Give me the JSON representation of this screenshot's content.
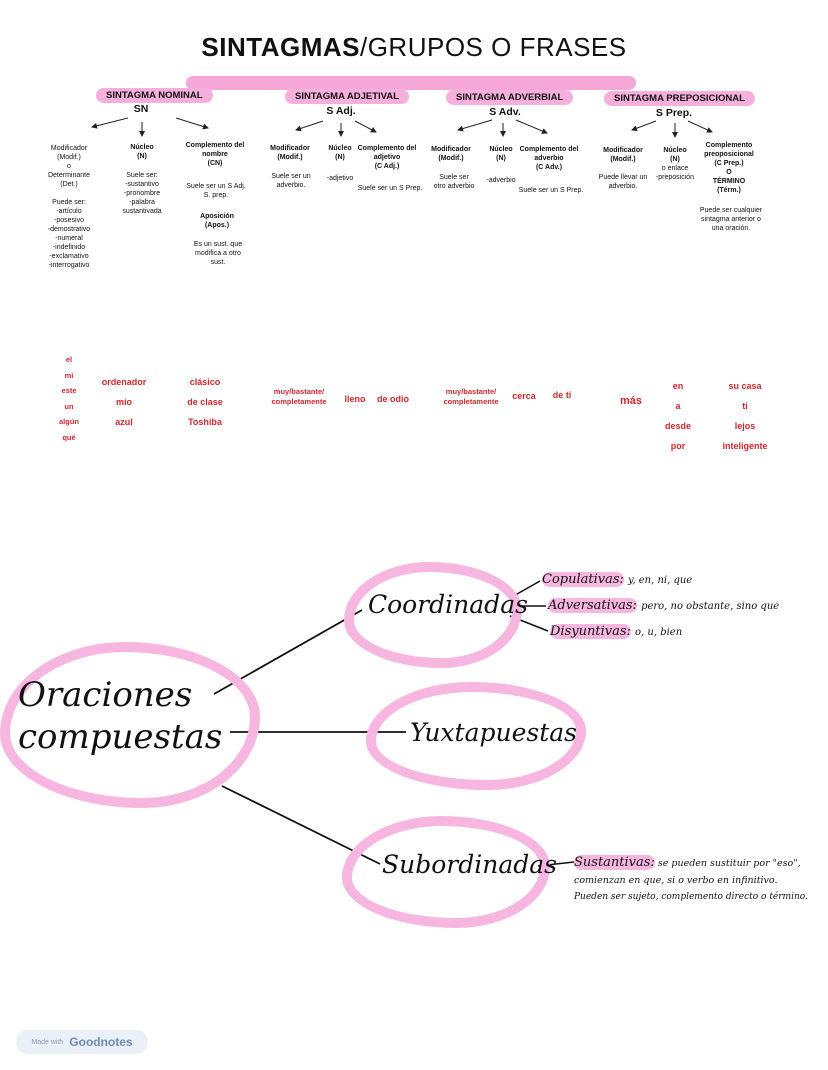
{
  "title": {
    "bold": "SINTAGMAS",
    "rest": "/GRUPOS O FRASES"
  },
  "sections": {
    "sn": {
      "label": "SINTAGMA NOMINAL",
      "abbr": "SN",
      "mod": {
        "head": "Modificador\n(Modif.)\no",
        "text": "Determinante\n(Det.)\n\nPuede ser:\n-artículo\n-posesivo\n-demostrativo\n-numeral\n-indefinido\n-exclamativo\n-interrogativo"
      },
      "nuc": {
        "head": "Núcleo\n(N)",
        "text": "Suele ser:\n-sustantivo\n-pronombre\n-palabra\nsustantivada"
      },
      "comp": {
        "head": "Complemento del\nnombre\n(CN)",
        "text": "Suele ser un S Adj.\nS. prep.",
        "apos_head": "Aposición\n(Apos.)",
        "apos_text": "Es un sust. que\nmodifica a otro\nsust."
      }
    },
    "sadj": {
      "label": "SINTAGMA ADJETIVAL",
      "abbr": "S Adj.",
      "mod": {
        "head": "Modificador\n(Modif.)",
        "text": "Suele ser un\nadverbio."
      },
      "nuc": {
        "head": "Núcleo\n(N)",
        "text": "-adjetivo"
      },
      "comp": {
        "head": "Complemento del\nadjetivo\n(C Adj.)",
        "text": "Suele ser un S Prep."
      }
    },
    "sadv": {
      "label": "SINTAGMA ADVERBIAL",
      "abbr": "S Adv.",
      "mod": {
        "head": "Modificador\n(Modif.)",
        "text": "Suele ser\notro adverbio"
      },
      "nuc": {
        "head": "Núcleo\n(N)",
        "text": "-adverbio"
      },
      "comp": {
        "head": "Complemento del\nadverbio\n(C Adv.)",
        "text": "Suele ser un S Prep."
      }
    },
    "sprep": {
      "label": "SINTAGMA PREPOSICIONAL",
      "abbr": "S Prep.",
      "mod": {
        "head": "Modificador\n(Modif.)",
        "text": "Puede llevar un\nadverbio."
      },
      "nuc": {
        "head": "Núcleo\n(N)",
        "text": "o enlace\n-preposición"
      },
      "comp": {
        "head": "Complemento\npreoposicional\n(C Prep.)\nO\nTÉRMINO\n(Térm.)",
        "text": "Puede ser cualquier\nsintagma anterior o\nuna oración."
      }
    }
  },
  "examples": {
    "det": [
      "el",
      "mi",
      "este",
      "un",
      "algún",
      "qué"
    ],
    "sn_nuc": [
      "ordenador",
      "mío",
      "azul"
    ],
    "sn_comp": [
      "clásico",
      "de clase",
      "Toshiba"
    ],
    "sadj_mod": "muy/bastante/\ncompletamente",
    "sadj_nuc": "lleno",
    "sadj_comp": "de odio",
    "sadv_mod": "muy/bastante/\ncompletamente",
    "sadv_nuc": "cerca",
    "sadv_comp": "de ti",
    "sprep_mod": "más",
    "sprep_nuc": [
      "en",
      "a",
      "desde",
      "por"
    ],
    "sprep_comp": [
      "su casa",
      "ti",
      "lejos",
      "inteligente"
    ]
  },
  "mindmap": {
    "center": "Oraciones\ncompuestas",
    "coord": "Coordinadas",
    "yux": "Yuxtapuestas",
    "sub": "Subordinadas",
    "copul_label": "Copulativas:",
    "copul_text": "y, en, ni, que",
    "adv_label": "Adversativas:",
    "adv_text": "pero, no obstante, sino que",
    "disy_label": "Disyuntivas:",
    "disy_text": "o, u, bien",
    "sust_label": "Sustantivas:",
    "sust_text1": "se pueden sustituir por \"eso\",",
    "sust_text2": "comienzan en que, si o verbo en infinitivo.",
    "sust_text3": "Pueden ser sujeto, complemento directo o término."
  },
  "footer": {
    "made_with": "Made with",
    "brand": "Goodnotes"
  }
}
